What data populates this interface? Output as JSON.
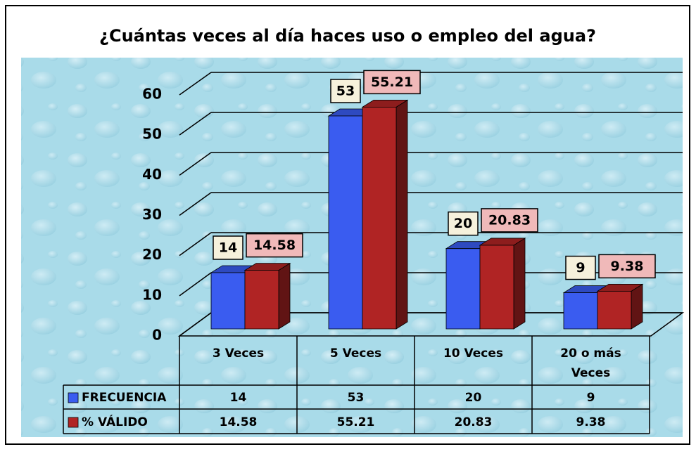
{
  "chart_data": {
    "type": "bar3d",
    "title": "¿Cuántas veces al día haces uso o empleo del agua?",
    "categories": [
      "3 Veces",
      "5 Veces",
      "10 Veces",
      "20 o más Veces"
    ],
    "series": [
      {
        "name": "FRECUENCIA",
        "color": "#3a5cf0",
        "values": [
          14,
          53,
          20,
          9
        ]
      },
      {
        "name": "% VÁLIDO",
        "color": "#b02424",
        "values": [
          14.58,
          55.21,
          20.83,
          9.38
        ]
      }
    ],
    "ylim": [
      0,
      60
    ],
    "yticks": [
      0,
      10,
      20,
      30,
      40,
      50,
      60
    ],
    "grid": true
  }
}
